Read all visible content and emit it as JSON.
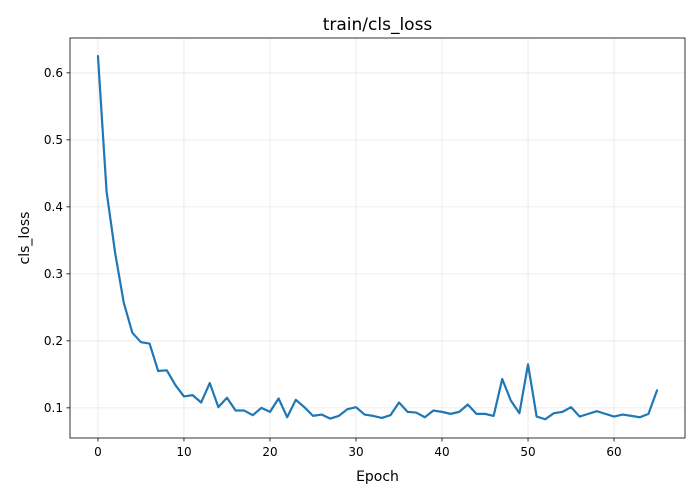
{
  "chart_data": {
    "type": "line",
    "title": "train/cls_loss",
    "xlabel": "Epoch",
    "ylabel": "cls_loss",
    "xlim": [
      -3.25,
      68.25
    ],
    "ylim": [
      0.055,
      0.652
    ],
    "xticks": [
      0,
      10,
      20,
      30,
      40,
      50,
      60
    ],
    "yticks": [
      0.1,
      0.2,
      0.3,
      0.4,
      0.5,
      0.6
    ],
    "grid": true,
    "series": [
      {
        "color": "#1f77b4",
        "x": [
          0,
          1,
          2,
          3,
          4,
          5,
          6,
          7,
          8,
          9,
          10,
          11,
          12,
          13,
          14,
          15,
          16,
          17,
          18,
          19,
          20,
          21,
          22,
          23,
          24,
          25,
          26,
          27,
          28,
          29,
          30,
          31,
          32,
          33,
          34,
          35,
          36,
          37,
          38,
          39,
          40,
          41,
          42,
          43,
          44,
          45,
          46,
          47,
          48,
          49,
          50,
          51,
          52,
          53,
          54,
          55,
          56,
          57,
          58,
          59,
          60,
          61,
          62,
          63,
          64,
          65
        ],
        "values": [
          0.625,
          0.423,
          0.331,
          0.257,
          0.212,
          0.198,
          0.196,
          0.155,
          0.156,
          0.134,
          0.117,
          0.119,
          0.108,
          0.137,
          0.101,
          0.115,
          0.096,
          0.096,
          0.089,
          0.1,
          0.094,
          0.114,
          0.086,
          0.112,
          0.101,
          0.088,
          0.09,
          0.084,
          0.088,
          0.098,
          0.101,
          0.09,
          0.088,
          0.085,
          0.089,
          0.108,
          0.094,
          0.093,
          0.086,
          0.096,
          0.094,
          0.091,
          0.094,
          0.105,
          0.091,
          0.091,
          0.088,
          0.143,
          0.111,
          0.092,
          0.165,
          0.087,
          0.083,
          0.092,
          0.094,
          0.101,
          0.087,
          0.091,
          0.095,
          0.091,
          0.087,
          0.09,
          0.088,
          0.086,
          0.091,
          0.126
        ]
      }
    ]
  }
}
